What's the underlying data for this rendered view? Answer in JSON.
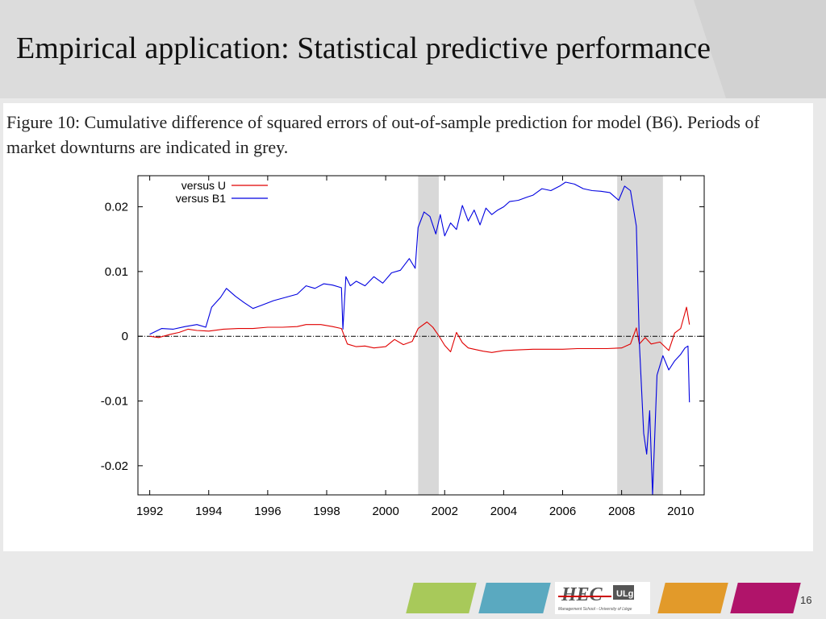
{
  "slide": {
    "title": "Empirical application: Statistical predictive performance",
    "caption": "Figure 10: Cumulative difference of squared errors of out-of-sample prediction for model (B6). Periods of market downturns are indicated in grey.",
    "page_number": "16"
  },
  "colors": {
    "strip_green": "#a8c95a",
    "strip_teal": "#5aa9c0",
    "strip_orange": "#e29a2a",
    "strip_magenta": "#b0146a",
    "series_u": "#e00000",
    "series_b1": "#0000e0",
    "shade": "#d8d8d8"
  },
  "logo": {
    "text": "HEC",
    "badge": "ULg",
    "subtitle": "Management School - University of Liège"
  },
  "chart_data": {
    "type": "line",
    "title": "",
    "xlabel": "",
    "ylabel": "",
    "xlim": [
      1991.6,
      2010.8
    ],
    "ylim": [
      -0.0245,
      0.0248
    ],
    "xticks": [
      "1992",
      "1994",
      "1996",
      "1998",
      "2000",
      "2002",
      "2004",
      "2006",
      "2008",
      "2010"
    ],
    "yticks": [
      "0.02",
      "0.01",
      "0",
      "-0.01",
      "-0.02"
    ],
    "shaded_periods": [
      [
        2001.1,
        2001.8
      ],
      [
        2007.85,
        2009.4
      ]
    ],
    "zero_line": true,
    "grid": false,
    "legend_position": "top-left",
    "series": [
      {
        "name": "versus U",
        "color": "#e00000",
        "x": [
          1992.0,
          1992.3,
          1992.7,
          1993.0,
          1993.3,
          1993.6,
          1994.0,
          1994.5,
          1995.0,
          1995.5,
          1996.0,
          1996.5,
          1997.0,
          1997.3,
          1997.8,
          1998.2,
          1998.5,
          1998.7,
          1999.0,
          1999.3,
          1999.6,
          2000.0,
          2000.3,
          2000.6,
          2000.9,
          2001.1,
          2001.4,
          2001.6,
          2001.8,
          2002.0,
          2002.2,
          2002.4,
          2002.6,
          2002.8,
          2003.0,
          2003.3,
          2003.6,
          2004.0,
          2004.5,
          2005.0,
          2005.5,
          2006.0,
          2006.5,
          2007.0,
          2007.5,
          2008.0,
          2008.3,
          2008.5,
          2008.6,
          2008.8,
          2009.0,
          2009.3,
          2009.6,
          2009.8,
          2010.0,
          2010.2,
          2010.3
        ],
        "y": [
          0.0,
          -0.0002,
          0.0003,
          0.0006,
          0.0011,
          0.0009,
          0.0008,
          0.0011,
          0.0012,
          0.0012,
          0.0014,
          0.0014,
          0.0015,
          0.0018,
          0.0018,
          0.0015,
          0.0012,
          -0.0012,
          -0.0016,
          -0.0015,
          -0.0018,
          -0.0016,
          -0.0005,
          -0.0013,
          -0.0008,
          0.0012,
          0.0022,
          0.0014,
          0.0001,
          -0.0014,
          -0.0024,
          0.0006,
          -0.001,
          -0.0018,
          -0.002,
          -0.0023,
          -0.0025,
          -0.0022,
          -0.0021,
          -0.002,
          -0.002,
          -0.002,
          -0.0019,
          -0.0019,
          -0.0019,
          -0.0018,
          -0.0012,
          0.0013,
          -0.0012,
          -0.0002,
          -0.0012,
          -0.0009,
          -0.0022,
          0.0005,
          0.0012,
          0.0045,
          0.0018
        ]
      },
      {
        "name": "versus B1",
        "color": "#0000e0",
        "x": [
          1992.0,
          1992.4,
          1992.8,
          1993.2,
          1993.6,
          1993.9,
          1994.1,
          1994.4,
          1994.6,
          1994.9,
          1995.2,
          1995.5,
          1995.8,
          1996.2,
          1996.6,
          1997.0,
          1997.3,
          1997.6,
          1997.9,
          1998.2,
          1998.5,
          1998.55,
          1998.65,
          1998.8,
          1999.0,
          1999.3,
          1999.6,
          1999.9,
          2000.2,
          2000.5,
          2000.8,
          2001.0,
          2001.1,
          2001.3,
          2001.5,
          2001.7,
          2001.85,
          2002.0,
          2002.2,
          2002.4,
          2002.6,
          2002.8,
          2003.0,
          2003.2,
          2003.4,
          2003.6,
          2003.8,
          2004.0,
          2004.2,
          2004.5,
          2004.8,
          2005.0,
          2005.3,
          2005.6,
          2005.9,
          2006.1,
          2006.4,
          2006.7,
          2007.0,
          2007.3,
          2007.6,
          2007.9,
          2008.1,
          2008.3,
          2008.5,
          2008.6,
          2008.75,
          2008.85,
          2008.95,
          2009.05,
          2009.2,
          2009.4,
          2009.6,
          2009.8,
          2010.0,
          2010.15,
          2010.25,
          2010.3
        ],
        "y": [
          0.0003,
          0.0012,
          0.0011,
          0.0015,
          0.0018,
          0.0014,
          0.0045,
          0.006,
          0.0074,
          0.0062,
          0.0052,
          0.0043,
          0.0048,
          0.0055,
          0.006,
          0.0065,
          0.0078,
          0.0074,
          0.0081,
          0.0079,
          0.0075,
          0.0011,
          0.0092,
          0.0078,
          0.0085,
          0.0078,
          0.0092,
          0.0082,
          0.0098,
          0.0102,
          0.012,
          0.0105,
          0.0168,
          0.0192,
          0.0185,
          0.0158,
          0.0188,
          0.0155,
          0.0175,
          0.0165,
          0.0202,
          0.0178,
          0.0195,
          0.0172,
          0.0198,
          0.0188,
          0.0195,
          0.02,
          0.0208,
          0.021,
          0.0215,
          0.0218,
          0.0228,
          0.0225,
          0.0232,
          0.0238,
          0.0235,
          0.0228,
          0.0225,
          0.0224,
          0.0222,
          0.021,
          0.0232,
          0.0225,
          0.017,
          -0.001,
          -0.015,
          -0.0182,
          -0.0115,
          -0.0245,
          -0.006,
          -0.003,
          -0.0052,
          -0.0038,
          -0.0028,
          -0.0018,
          -0.0015,
          -0.0102
        ]
      }
    ]
  }
}
